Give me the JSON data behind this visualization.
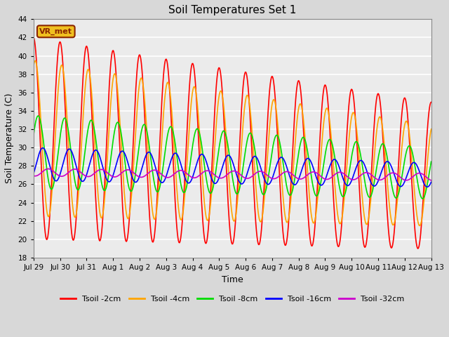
{
  "title": "Soil Temperatures Set 1",
  "xlabel": "Time",
  "ylabel": "Soil Temperature (C)",
  "ylim": [
    18,
    44
  ],
  "yticks": [
    18,
    20,
    22,
    24,
    26,
    28,
    30,
    32,
    34,
    36,
    38,
    40,
    42,
    44
  ],
  "date_labels": [
    "Jul 29",
    "Jul 30",
    "Jul 31",
    "Aug 1",
    "Aug 2",
    "Aug 3",
    "Aug 4",
    "Aug 5",
    "Aug 6",
    "Aug 7",
    "Aug 8",
    "Aug 9",
    "Aug 10",
    "Aug 11",
    "Aug 12",
    "Aug 13"
  ],
  "lines": [
    {
      "label": "Tsoil -2cm",
      "color": "#ff0000"
    },
    {
      "label": "Tsoil -4cm",
      "color": "#ffa500"
    },
    {
      "label": "Tsoil -8cm",
      "color": "#00dd00"
    },
    {
      "label": "Tsoil -16cm",
      "color": "#0000ff"
    },
    {
      "label": "Tsoil -32cm",
      "color": "#cc00cc"
    }
  ],
  "annotation_text": "VR_met",
  "bg_color": "#d8d8d8",
  "plot_bg": "#ebebeb",
  "grid_color": "#ffffff",
  "linewidth": 1.2,
  "n_days": 15,
  "pts_per_day": 48,
  "figsize": [
    6.4,
    4.8
  ],
  "dpi": 100
}
